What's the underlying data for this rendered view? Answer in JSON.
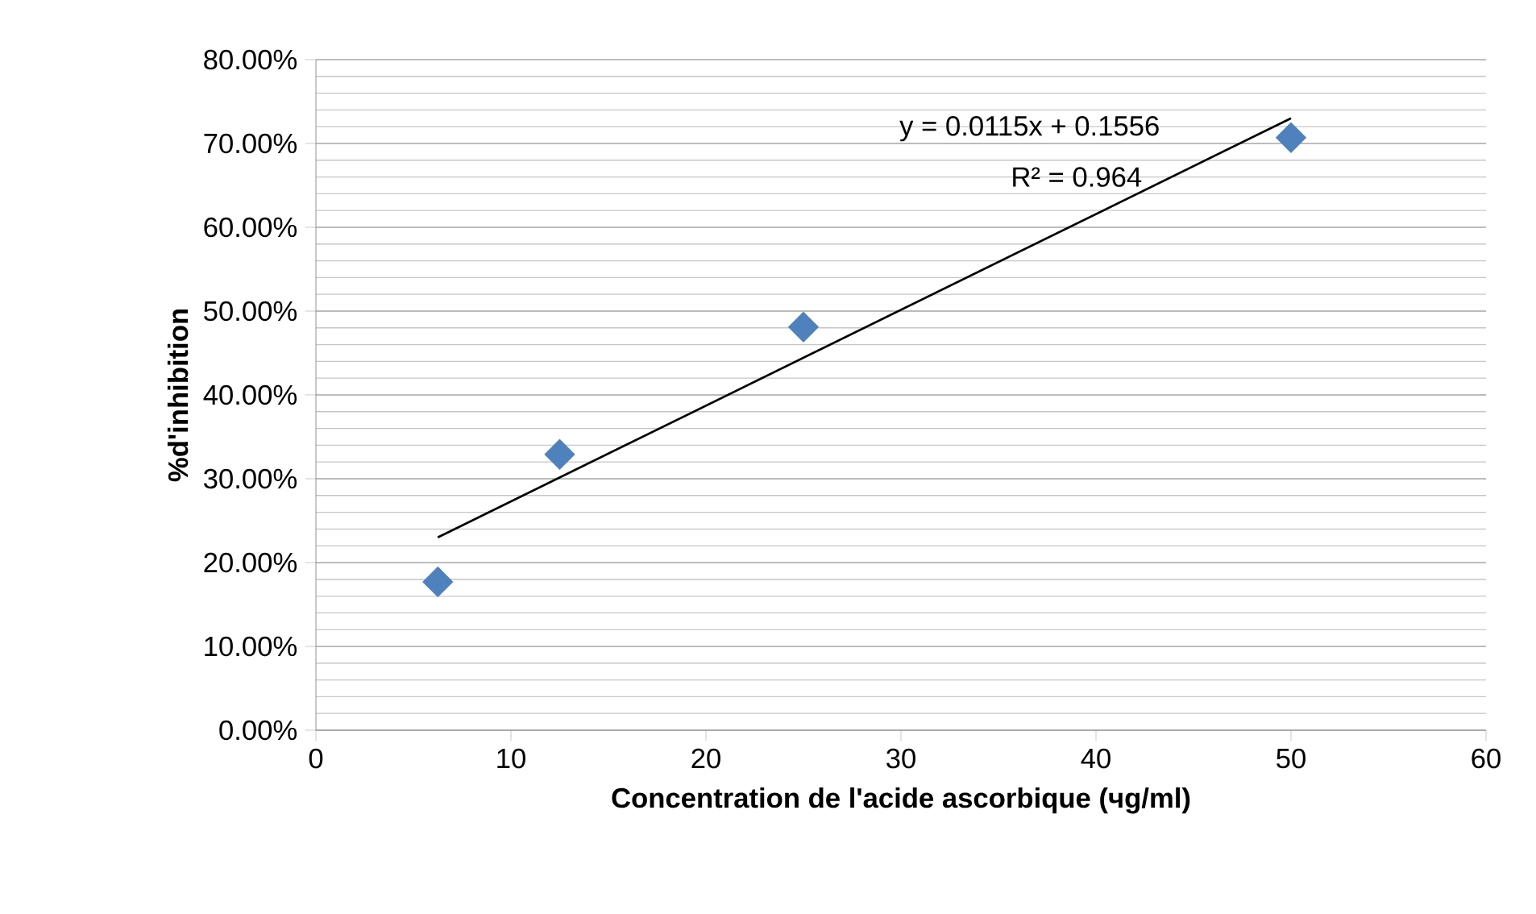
{
  "chart_data": {
    "type": "scatter",
    "xlabel": "Concentration de l'acide ascorbique (чg/ml)",
    "ylabel": "%d'inhibition",
    "annotations": [
      "y = 0.0115x + 0.1556",
      "R² = 0.964"
    ],
    "series": [
      {
        "color": "#4f81bd",
        "marker": "diamond",
        "x": [
          6.25,
          12.5,
          25,
          50
        ],
        "values": [
          0.177,
          0.329,
          0.481,
          0.707
        ]
      },
      {
        "type": "line",
        "color": "#000000",
        "marker": "none",
        "line_style": "solid",
        "x": [
          6.25,
          50
        ],
        "values": [
          0.23,
          0.73
        ]
      }
    ],
    "xlim": [
      0,
      60
    ],
    "xticks": [
      0,
      10,
      20,
      30,
      40,
      50,
      60
    ],
    "ylim": [
      0,
      0.8
    ],
    "yticks": [
      {
        "value": 0,
        "label": "0.00%"
      },
      {
        "value": 0.1,
        "label": "10.00%"
      },
      {
        "value": 0.2,
        "label": "20.00%"
      },
      {
        "value": 0.3,
        "label": "30.00%"
      },
      {
        "value": 0.4,
        "label": "40.00%"
      },
      {
        "value": 0.5,
        "label": "50.00%"
      },
      {
        "value": 0.6,
        "label": "60.00%"
      },
      {
        "value": 0.7,
        "label": "70.00%"
      },
      {
        "value": 0.8,
        "label": "80.00%"
      }
    ],
    "grid": "y"
  }
}
